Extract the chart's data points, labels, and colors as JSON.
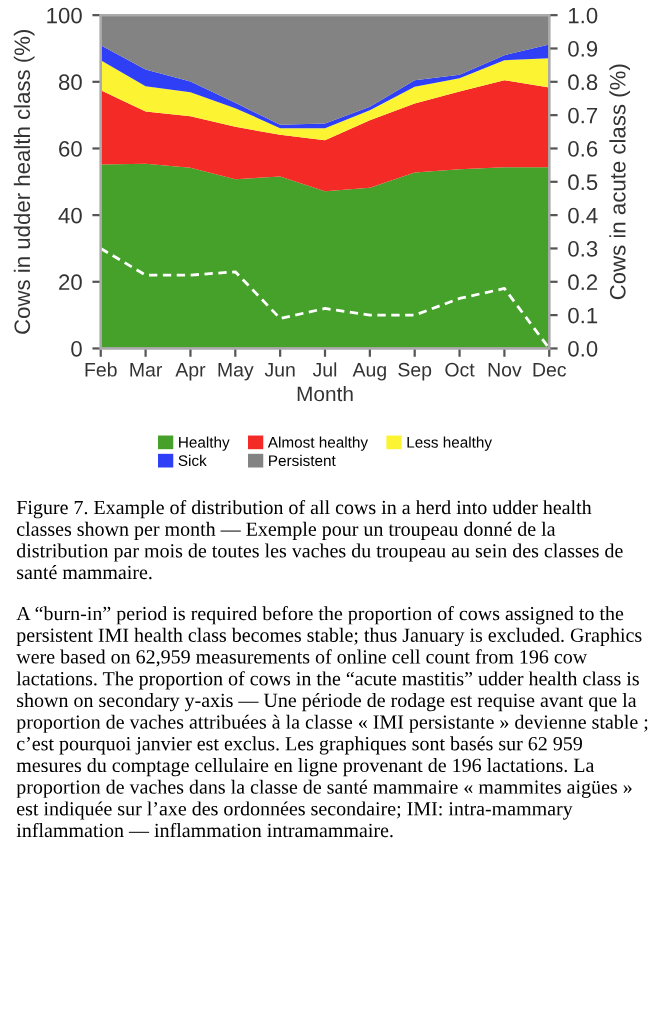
{
  "chart_data": {
    "type": "area",
    "stacked": true,
    "xlabel": "Month",
    "ylabel": "Cows in udder health class (%)",
    "y2label": "Cows in acute class (%)",
    "categories": [
      "Feb",
      "Mar",
      "Apr",
      "May",
      "Jun",
      "Jul",
      "Aug",
      "Sep",
      "Oct",
      "Nov",
      "Dec"
    ],
    "series": [
      {
        "name": "Healthy",
        "color": "#45a12a",
        "values": [
          55.2,
          55.4,
          54.2,
          50.8,
          51.6,
          47.2,
          48.2,
          52.8,
          53.8,
          54.4,
          54.4
        ]
      },
      {
        "name": "Almost healthy",
        "color": "#f32a25",
        "values": [
          22.3,
          15.7,
          15.5,
          15.7,
          12.5,
          15.3,
          20.3,
          20.7,
          23.3,
          26.1,
          23.9
        ]
      },
      {
        "name": "Less healthy",
        "color": "#fcf432",
        "values": [
          9.0,
          7.6,
          7.2,
          5.6,
          2.0,
          3.6,
          3.0,
          5.0,
          4.0,
          6.0,
          8.8
        ]
      },
      {
        "name": "Sick",
        "color": "#2f3ff5",
        "values": [
          4.5,
          5.0,
          3.2,
          1.6,
          1.0,
          1.4,
          1.0,
          2.0,
          1.0,
          1.5,
          4.1
        ]
      },
      {
        "name": "Persistent",
        "color": "#838383",
        "values": [
          9.0,
          16.3,
          19.9,
          26.3,
          32.9,
          32.5,
          27.5,
          19.5,
          17.9,
          12.0,
          8.8
        ]
      },
      {
        "type": "line",
        "axis": "y2",
        "color": "#ffffff",
        "line_style": "dashed",
        "values": [
          0.3,
          0.22,
          0.22,
          0.23,
          0.09,
          0.12,
          0.1,
          0.1,
          0.15,
          0.18,
          0.0
        ]
      }
    ],
    "ylim": [
      0,
      100
    ],
    "yticks": [
      0,
      20,
      40,
      60,
      80,
      100
    ],
    "y2lim": [
      0,
      1.0
    ],
    "y2ticks": [
      {
        "value": 0,
        "label": "0.0"
      },
      0.1,
      0.2,
      0.3,
      0.4,
      0.5,
      0.6,
      0.7,
      0.8,
      0.9,
      {
        "value": 1,
        "label": "1.0"
      }
    ],
    "grid": false,
    "legend": "bottom",
    "annotations": [
      "Figure 7. Example of distribution of all cows in a herd into udder health classes shown per month — Exemple pour un troupeau donné de la distribution par mois de toutes les vaches du troupeau au sein des classes de santé mammaire.",
      "A “burn-in” period is required before the proportion of cows assigned to the persistent IMI health class becomes stable; thus January is excluded. Graphics were based on 62,959 measurements of online cell count from 196 cow lactations. The proportion of cows in the “acute mastitis” udder health class is shown on secondary y-axis — Une période de rodage est requise avant que la proportion de vaches attribuées à la classe « IMI persistante » devienne stable ; c’est pourquoi janvier est exclus. Les graphiques sont basés sur 62 959 mesures du comptage cellulaire en ligne provenant de 196 lactations. La proportion de vaches dans la classe de santé mammaire « mammites aigües » est indiquée sur l’axe des ordonnées secondaire; IMI: intra-mammary inflammation — inflammation intramammaire."
    ]
  }
}
